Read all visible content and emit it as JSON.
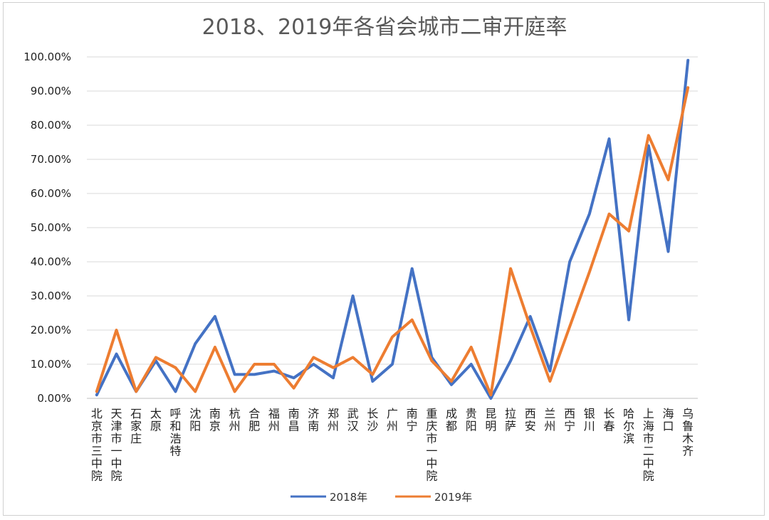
{
  "chart_data": {
    "type": "line",
    "title": "2018、2019年各省会城市二审开庭率",
    "categories": [
      "北京市三中院",
      "天津市一中院",
      "石家庄",
      "太原",
      "呼和浩特",
      "沈阳",
      "南京",
      "杭州",
      "合肥",
      "福州",
      "南昌",
      "济南",
      "郑州",
      "武汉",
      "长沙",
      "广州",
      "南宁",
      "重庆市一中院",
      "成都",
      "贵阳",
      "昆明",
      "拉萨",
      "西安",
      "兰州",
      "西宁",
      "银川",
      "长春",
      "哈尔滨",
      "上海市二中院",
      "海口",
      "乌鲁木齐"
    ],
    "series": [
      {
        "name": "2018年",
        "color": "#4472C4",
        "values": [
          1,
          13,
          2,
          11,
          2,
          16,
          24,
          7,
          7,
          8,
          6,
          10,
          6,
          30,
          5,
          10,
          38,
          12,
          4,
          10,
          0,
          11,
          24,
          8,
          40,
          54,
          76,
          23,
          74,
          43,
          99
        ]
      },
      {
        "name": "2019年",
        "color": "#ED7D31",
        "values": [
          2,
          20,
          2,
          12,
          9,
          2,
          15,
          2,
          10,
          10,
          3,
          12,
          9,
          12,
          7,
          18,
          23,
          11,
          5,
          15,
          1,
          38,
          21,
          5,
          21,
          37,
          54,
          49,
          77,
          64,
          91
        ]
      }
    ],
    "ylim": [
      0,
      100
    ],
    "yticks": [
      "0.00%",
      "10.00%",
      "20.00%",
      "30.00%",
      "40.00%",
      "50.00%",
      "60.00%",
      "70.00%",
      "80.00%",
      "90.00%",
      "100.00%"
    ],
    "grid": true,
    "legend": "bottom"
  }
}
